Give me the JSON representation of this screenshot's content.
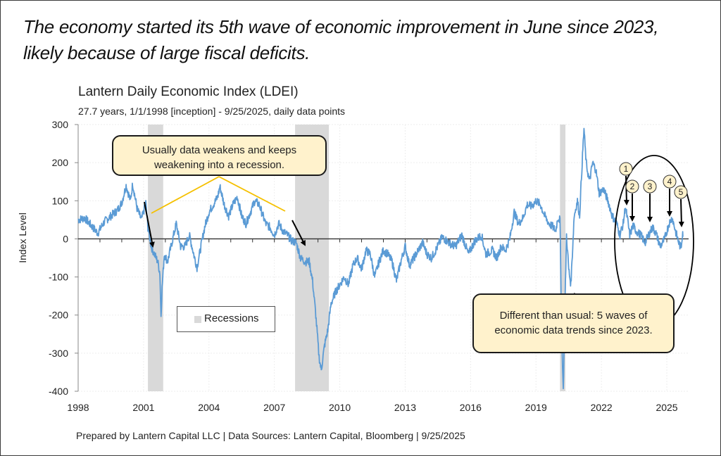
{
  "headline": "The economy started its 5th wave of economic improvement in June since 2023, likely because of large fiscal deficits.",
  "footer": "Prepared by Lantern Capital LLC | Data Sources: Lantern Capital, Bloomberg | 9/25/2025",
  "legend": {
    "recessions_label": "Recessions"
  },
  "callouts": {
    "left": "Usually data weakens and keeps weakening into a recession.",
    "right": "Different than usual: 5 waves of economic data trends since 2023."
  },
  "colors": {
    "line": "#5b9bd5",
    "recession": "#d9d9d9",
    "callout_fill": "#fff2cc",
    "connector": "#f5c000"
  },
  "chart_data": {
    "type": "line",
    "title": "Lantern Daily Economic Index (LDEI)",
    "subtitle": "27.7 years, 1/1/1998 [inception] - 9/25/2025, daily data points",
    "xlabel": "",
    "ylabel": "Index Level",
    "xlim": [
      1998,
      2026
    ],
    "ylim": [
      -400,
      300
    ],
    "x_ticks": [
      "1998",
      "2001",
      "2004",
      "2007",
      "2010",
      "2013",
      "2016",
      "2019",
      "2022",
      "2025"
    ],
    "y_ticks": [
      "300",
      "200",
      "100",
      "0",
      "-100",
      "-200",
      "-300",
      "-400"
    ],
    "grid": true,
    "legend_position": "lower-left",
    "recessions": [
      {
        "start": 2001.2,
        "end": 2001.9
      },
      {
        "start": 2007.95,
        "end": 2009.5
      },
      {
        "start": 2020.1,
        "end": 2020.35
      }
    ],
    "series": [
      {
        "name": "LDEI",
        "points": [
          [
            1998.0,
            50
          ],
          [
            1998.3,
            55
          ],
          [
            1998.6,
            35
          ],
          [
            1998.9,
            15
          ],
          [
            1999.2,
            45
          ],
          [
            1999.5,
            60
          ],
          [
            1999.8,
            75
          ],
          [
            2000.0,
            95
          ],
          [
            2000.2,
            140
          ],
          [
            2000.4,
            100
          ],
          [
            2000.5,
            145
          ],
          [
            2000.7,
            80
          ],
          [
            2000.9,
            50
          ],
          [
            2001.0,
            70
          ],
          [
            2001.1,
            95
          ],
          [
            2001.2,
            30
          ],
          [
            2001.35,
            -20
          ],
          [
            2001.5,
            -40
          ],
          [
            2001.65,
            -60
          ],
          [
            2001.75,
            -90
          ],
          [
            2001.8,
            -200
          ],
          [
            2001.85,
            -130
          ],
          [
            2001.95,
            -40
          ],
          [
            2002.1,
            -60
          ],
          [
            2002.3,
            -10
          ],
          [
            2002.5,
            40
          ],
          [
            2002.7,
            -20
          ],
          [
            2002.9,
            -20
          ],
          [
            2003.1,
            10
          ],
          [
            2003.3,
            -40
          ],
          [
            2003.45,
            -75
          ],
          [
            2003.6,
            -30
          ],
          [
            2003.8,
            30
          ],
          [
            2004.0,
            70
          ],
          [
            2004.2,
            90
          ],
          [
            2004.4,
            110
          ],
          [
            2004.5,
            138
          ],
          [
            2004.7,
            90
          ],
          [
            2004.9,
            60
          ],
          [
            2005.1,
            90
          ],
          [
            2005.3,
            110
          ],
          [
            2005.5,
            60
          ],
          [
            2005.7,
            40
          ],
          [
            2005.9,
            70
          ],
          [
            2006.1,
            100
          ],
          [
            2006.3,
            90
          ],
          [
            2006.6,
            40
          ],
          [
            2006.8,
            30
          ],
          [
            2007.0,
            10
          ],
          [
            2007.2,
            40
          ],
          [
            2007.4,
            20
          ],
          [
            2007.6,
            10
          ],
          [
            2007.8,
            -5
          ],
          [
            2008.0,
            -10
          ],
          [
            2008.2,
            -50
          ],
          [
            2008.4,
            -60
          ],
          [
            2008.6,
            -60
          ],
          [
            2008.75,
            -110
          ],
          [
            2008.9,
            -200
          ],
          [
            2009.05,
            -310
          ],
          [
            2009.15,
            -345
          ],
          [
            2009.3,
            -280
          ],
          [
            2009.45,
            -240
          ],
          [
            2009.6,
            -170
          ],
          [
            2009.8,
            -140
          ],
          [
            2010.0,
            -120
          ],
          [
            2010.2,
            -100
          ],
          [
            2010.4,
            -120
          ],
          [
            2010.6,
            -70
          ],
          [
            2010.8,
            -50
          ],
          [
            2011.0,
            -80
          ],
          [
            2011.2,
            -30
          ],
          [
            2011.4,
            -40
          ],
          [
            2011.6,
            -100
          ],
          [
            2011.8,
            -60
          ],
          [
            2012.0,
            -30
          ],
          [
            2012.2,
            -40
          ],
          [
            2012.4,
            -60
          ],
          [
            2012.6,
            -110
          ],
          [
            2012.8,
            -60
          ],
          [
            2013.0,
            -20
          ],
          [
            2013.2,
            -70
          ],
          [
            2013.5,
            -40
          ],
          [
            2013.8,
            -10
          ],
          [
            2014.0,
            -40
          ],
          [
            2014.2,
            -50
          ],
          [
            2014.4,
            -30
          ],
          [
            2014.7,
            5
          ],
          [
            2015.0,
            -10
          ],
          [
            2015.3,
            -20
          ],
          [
            2015.6,
            10
          ],
          [
            2015.9,
            -40
          ],
          [
            2016.2,
            -5
          ],
          [
            2016.5,
            10
          ],
          [
            2016.7,
            -40
          ],
          [
            2017.0,
            -30
          ],
          [
            2017.2,
            -50
          ],
          [
            2017.4,
            -20
          ],
          [
            2017.6,
            -30
          ],
          [
            2017.8,
            0
          ],
          [
            2018.0,
            70
          ],
          [
            2018.2,
            40
          ],
          [
            2018.4,
            55
          ],
          [
            2018.6,
            90
          ],
          [
            2018.8,
            85
          ],
          [
            2019.0,
            100
          ],
          [
            2019.2,
            90
          ],
          [
            2019.4,
            60
          ],
          [
            2019.6,
            40
          ],
          [
            2019.8,
            30
          ],
          [
            2019.9,
            20
          ],
          [
            2020.0,
            55
          ],
          [
            2020.1,
            50
          ],
          [
            2020.18,
            -250
          ],
          [
            2020.25,
            -400
          ],
          [
            2020.32,
            -200
          ],
          [
            2020.4,
            10
          ],
          [
            2020.5,
            -80
          ],
          [
            2020.6,
            -120
          ],
          [
            2020.75,
            60
          ],
          [
            2020.9,
            100
          ],
          [
            2021.0,
            60
          ],
          [
            2021.1,
            180
          ],
          [
            2021.2,
            290
          ],
          [
            2021.3,
            200
          ],
          [
            2021.45,
            150
          ],
          [
            2021.6,
            200
          ],
          [
            2021.75,
            180
          ],
          [
            2021.9,
            120
          ],
          [
            2022.1,
            130
          ],
          [
            2022.3,
            100
          ],
          [
            2022.5,
            60
          ],
          [
            2022.7,
            40
          ],
          [
            2022.85,
            10
          ],
          [
            2023.0,
            40
          ],
          [
            2023.1,
            85
          ],
          [
            2023.2,
            50
          ],
          [
            2023.3,
            10
          ],
          [
            2023.45,
            35
          ],
          [
            2023.6,
            20
          ],
          [
            2023.8,
            10
          ],
          [
            2024.0,
            -10
          ],
          [
            2024.2,
            15
          ],
          [
            2024.35,
            30
          ],
          [
            2024.5,
            15
          ],
          [
            2024.7,
            -20
          ],
          [
            2024.9,
            0
          ],
          [
            2025.1,
            40
          ],
          [
            2025.25,
            55
          ],
          [
            2025.4,
            20
          ],
          [
            2025.55,
            -10
          ],
          [
            2025.65,
            -25
          ],
          [
            2025.75,
            5
          ],
          [
            2025.73,
            20
          ]
        ]
      }
    ],
    "wave_markers": [
      "1",
      "2",
      "3",
      "4",
      "5"
    ]
  }
}
